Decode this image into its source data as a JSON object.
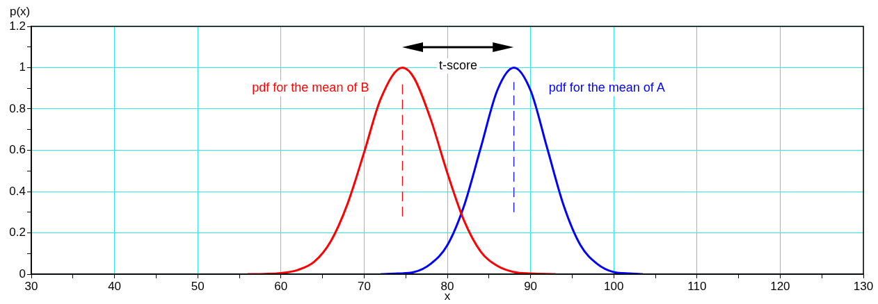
{
  "chart_data": {
    "type": "line",
    "xlabel": "x",
    "ylabel": "p(x)",
    "xlim": [
      30,
      130
    ],
    "ylim": [
      0,
      1.2
    ],
    "xticks": [
      30,
      {
        "value": 35,
        "label": null
      },
      40,
      {
        "value": 45,
        "label": null
      },
      50,
      {
        "value": 55,
        "label": null
      },
      60,
      {
        "value": 65,
        "label": null
      },
      70,
      {
        "value": 75,
        "label": null
      },
      80,
      {
        "value": 85,
        "label": null
      },
      90,
      {
        "value": 95,
        "label": null
      },
      100,
      {
        "value": 105,
        "label": null
      },
      110,
      {
        "value": 115,
        "label": null
      },
      120,
      {
        "value": 125,
        "label": null
      },
      130
    ],
    "yticks": [
      0,
      {
        "value": 0.1,
        "label": null
      },
      0.2,
      {
        "value": 0.3,
        "label": null
      },
      0.4,
      {
        "value": 0.5,
        "label": null
      },
      0.6,
      {
        "value": 0.7,
        "label": null
      },
      0.8,
      {
        "value": 0.9,
        "label": null
      },
      1,
      {
        "value": 1.1,
        "label": null
      },
      1.2
    ],
    "grid": true,
    "marker": "none",
    "line_style": "solid",
    "annotations": [
      "t-score"
    ],
    "series": [
      {
        "name": "pdf for the mean of B",
        "color": "#ff0000",
        "x": [
          56,
          58,
          60,
          62,
          64,
          66,
          68,
          70,
          72,
          74.6,
          76,
          78,
          80,
          82,
          84,
          86,
          88,
          90,
          93
        ],
        "values": [
          0,
          0.001,
          0.005,
          0.02,
          0.06,
          0.16,
          0.34,
          0.59,
          0.85,
          1,
          0.95,
          0.75,
          0.49,
          0.26,
          0.11,
          0.04,
          0.01,
          0.003,
          0
        ]
      },
      {
        "name": "pdf for the mean of A",
        "color": "#0000ff",
        "x": [
          72,
          74,
          76,
          78,
          80,
          82,
          84,
          86,
          88,
          90,
          92,
          94,
          96,
          98,
          100,
          102,
          103.5
        ],
        "values": [
          0,
          0.003,
          0.01,
          0.05,
          0.14,
          0.33,
          0.61,
          0.89,
          1,
          0.89,
          0.61,
          0.33,
          0.14,
          0.05,
          0.01,
          0.003,
          0
        ]
      },
      {
        "color": "#ff0000",
        "line_style": "dashed",
        "x": [
          74.6,
          74.6
        ],
        "values": [
          0.28,
          0.93
        ]
      },
      {
        "color": "#0000ff",
        "line_style": "dashed",
        "x": [
          88,
          88
        ],
        "values": [
          0.3,
          0.93
        ]
      }
    ]
  }
}
